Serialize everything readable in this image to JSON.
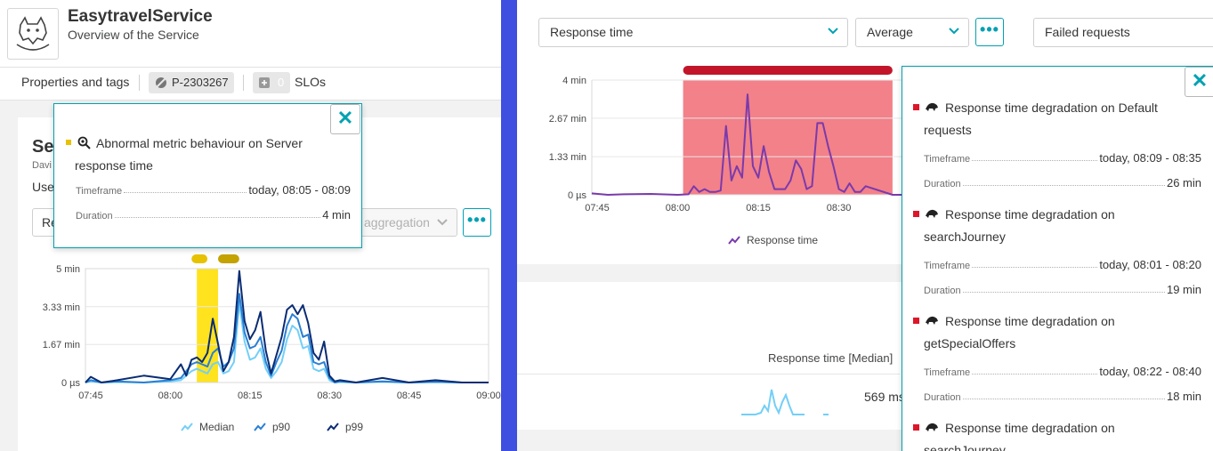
{
  "left_panel": {
    "service_title": "EasytravelService",
    "service_subtitle": "Overview of the Service",
    "tags": {
      "properties_label": "Properties and tags",
      "process_id": "P-2303267",
      "slo_count": "0",
      "slo_label": "SLOs"
    },
    "card": {
      "title": "Se",
      "subtitle": "Davi",
      "use_label": "Use",
      "select1_label": "Re",
      "aggregation_label": "aggregation",
      "more_label": "•••"
    },
    "popup": {
      "title": "Abnormal metric behaviour on Server response time",
      "timeframe_label": "Timeframe",
      "timeframe_value": "today, 08:05 - 08:09",
      "duration_label": "Duration",
      "duration_value": "4 min",
      "close_label": "✕",
      "marker_color": "#e6c200"
    },
    "chart_data": {
      "type": "line",
      "y_ticks": [
        "5 min",
        "3.33 min",
        "1.67 min",
        "0 µs"
      ],
      "y_tick_values": [
        5,
        3.33,
        1.67,
        0
      ],
      "x_ticks": [
        "07:45",
        "08:00",
        "08:15",
        "08:30",
        "08:45",
        "09:00"
      ],
      "ylim": [
        0,
        5
      ],
      "y_unit": "min",
      "x_range": [
        "07:44",
        "09:00"
      ],
      "highlight": {
        "from": "08:05",
        "to": "08:09",
        "color": "#ffe31f"
      },
      "event_markers": [
        {
          "from": "08:04",
          "to": "08:07",
          "color": "#e6c200"
        },
        {
          "from": "08:09",
          "to": "08:13",
          "color": "#c4a200"
        }
      ],
      "series": [
        {
          "name": "Median",
          "color": "#74cff7",
          "x": [
            "07:44",
            "07:45",
            "07:47",
            "07:50",
            "07:55",
            "08:00",
            "08:02",
            "08:03",
            "08:04",
            "08:05",
            "08:06",
            "08:07",
            "08:08",
            "08:09",
            "08:10",
            "08:11",
            "08:12",
            "08:13",
            "08:14",
            "08:15",
            "08:16",
            "08:17",
            "08:18",
            "08:19",
            "08:20",
            "08:21",
            "08:22",
            "08:23",
            "08:24",
            "08:25",
            "08:26",
            "08:27",
            "08:28",
            "08:29",
            "08:30",
            "08:31",
            "08:32",
            "08:35",
            "08:40",
            "08:45",
            "08:50",
            "08:55",
            "09:00"
          ],
          "values": [
            0,
            0.05,
            0,
            0.02,
            0,
            0.05,
            0.1,
            0.3,
            0.5,
            0.6,
            0.5,
            0.4,
            0.8,
            0.9,
            0.4,
            0.5,
            0.9,
            3.5,
            1.8,
            1.0,
            1.1,
            1.5,
            0.6,
            0.2,
            0.5,
            0.9,
            1.9,
            2.5,
            2.3,
            1.5,
            1.6,
            0.6,
            0.5,
            0.6,
            0.1,
            0,
            0.02,
            0,
            0.03,
            0,
            0.02,
            0,
            0
          ]
        },
        {
          "name": "p90",
          "color": "#2a7fd4",
          "x": [
            "07:44",
            "07:45",
            "07:47",
            "07:50",
            "07:55",
            "08:00",
            "08:02",
            "08:03",
            "08:04",
            "08:05",
            "08:06",
            "08:07",
            "08:08",
            "08:09",
            "08:10",
            "08:11",
            "08:12",
            "08:13",
            "08:14",
            "08:15",
            "08:16",
            "08:17",
            "08:18",
            "08:19",
            "08:20",
            "08:21",
            "08:22",
            "08:23",
            "08:24",
            "08:25",
            "08:26",
            "08:27",
            "08:28",
            "08:29",
            "08:30",
            "08:31",
            "08:32",
            "08:35",
            "08:40",
            "08:45",
            "08:50",
            "08:55",
            "09:00"
          ],
          "values": [
            0,
            0.1,
            0,
            0.05,
            0,
            0.1,
            0.2,
            0.5,
            0.8,
            0.9,
            0.8,
            0.7,
            1.3,
            1.5,
            0.7,
            0.9,
            1.5,
            3.9,
            2.2,
            1.5,
            1.6,
            2.0,
            0.9,
            0.3,
            0.9,
            1.4,
            2.5,
            3.0,
            2.8,
            2.0,
            2.1,
            0.9,
            0.8,
            0.9,
            0.2,
            0,
            0.05,
            0,
            0.05,
            0,
            0.03,
            0,
            0
          ]
        },
        {
          "name": "p99",
          "color": "#0a2c73",
          "x": [
            "07:44",
            "07:45",
            "07:47",
            "07:50",
            "07:55",
            "08:00",
            "08:02",
            "08:03",
            "08:04",
            "08:05",
            "08:06",
            "08:07",
            "08:08",
            "08:09",
            "08:10",
            "08:11",
            "08:12",
            "08:13",
            "08:14",
            "08:15",
            "08:16",
            "08:17",
            "08:18",
            "08:19",
            "08:20",
            "08:21",
            "08:22",
            "08:23",
            "08:24",
            "08:25",
            "08:26",
            "08:27",
            "08:28",
            "08:29",
            "08:30",
            "08:31",
            "08:32",
            "08:35",
            "08:40",
            "08:45",
            "08:50",
            "08:55",
            "09:00"
          ],
          "values": [
            0,
            0.25,
            0,
            0.1,
            0.3,
            0.15,
            0.8,
            0.3,
            1.0,
            1.1,
            0.9,
            1.3,
            2.8,
            1.7,
            0.5,
            0.9,
            2.0,
            4.9,
            2.7,
            1.9,
            2.3,
            3.1,
            1.4,
            0.4,
            1.2,
            2.0,
            3.2,
            3.4,
            3.0,
            3.4,
            2.6,
            1.3,
            1.0,
            1.8,
            0.3,
            0.05,
            0.1,
            0,
            0.2,
            0,
            0.1,
            0,
            0
          ]
        }
      ],
      "legend": [
        {
          "name": "Median",
          "color": "#74cff7"
        },
        {
          "name": "p90",
          "color": "#2a7fd4"
        },
        {
          "name": "p99",
          "color": "#0a2c73"
        }
      ]
    }
  },
  "right_panel": {
    "metric_select": "Response time",
    "aggregation_select": "Average",
    "more_label": "•••",
    "failed_select": "Failed requests",
    "close_label": "✕",
    "median_label": "Response time [Median]",
    "median_value": "569 ms",
    "chart_data": {
      "type": "area",
      "y_ticks": [
        "4 min",
        "2.67 min",
        "1.33 min",
        "0 µs"
      ],
      "y_tick_values": [
        4,
        2.67,
        1.33,
        0
      ],
      "x_ticks": [
        "07:45",
        "08:00",
        "08:15",
        "08:30"
      ],
      "ylim": [
        0,
        4
      ],
      "y_unit": "min",
      "x_range": [
        "07:44",
        "08:43"
      ],
      "highlight": {
        "from": "08:01",
        "to": "08:40",
        "color": "#f28189"
      },
      "event_markers": [
        {
          "from": "08:01",
          "to": "08:40",
          "color": "#c3152a"
        }
      ],
      "series": [
        {
          "name": "Response time",
          "color": "#7b3aab",
          "x": [
            "07:44",
            "07:47",
            "07:50",
            "07:55",
            "08:00",
            "08:02",
            "08:03",
            "08:04",
            "08:05",
            "08:06",
            "08:07",
            "08:08",
            "08:09",
            "08:10",
            "08:11",
            "08:12",
            "08:13",
            "08:14",
            "08:15",
            "08:16",
            "08:17",
            "08:18",
            "08:19",
            "08:20",
            "08:21",
            "08:22",
            "08:23",
            "08:24",
            "08:25",
            "08:26",
            "08:27",
            "08:28",
            "08:29",
            "08:30",
            "08:31",
            "08:32",
            "08:33",
            "08:34",
            "08:35",
            "08:40",
            "08:43"
          ],
          "values": [
            0.05,
            0,
            0.02,
            0.03,
            0,
            0.02,
            0.3,
            0.1,
            0.2,
            0.1,
            0.1,
            0.15,
            2.4,
            0.5,
            1.0,
            0.6,
            3.5,
            1.0,
            0.6,
            1.7,
            0.8,
            0.2,
            0.2,
            0.2,
            0.5,
            1.2,
            0.9,
            0.2,
            0.3,
            2.5,
            2.5,
            1.7,
            1.0,
            0.2,
            0.1,
            0.4,
            0.1,
            0.1,
            0.3,
            0,
            0
          ]
        }
      ],
      "legend": [
        {
          "name": "Response time",
          "color": "#7b3aab"
        }
      ]
    },
    "events": [
      {
        "title": "Response time degradation on Default requests",
        "timeframe_label": "Timeframe",
        "timeframe_value": "today, 08:09 - 08:35",
        "duration_label": "Duration",
        "duration_value": "26 min"
      },
      {
        "title": "Response time degradation on searchJourney",
        "timeframe_label": "Timeframe",
        "timeframe_value": "today, 08:01 - 08:20",
        "duration_label": "Duration",
        "duration_value": "19 min"
      },
      {
        "title": "Response time degradation on getSpecialOffers",
        "timeframe_label": "Timeframe",
        "timeframe_value": "today, 08:22 - 08:40",
        "duration_label": "Duration",
        "duration_value": "18 min"
      },
      {
        "title": "Response time degradation on searchJourney"
      }
    ]
  }
}
